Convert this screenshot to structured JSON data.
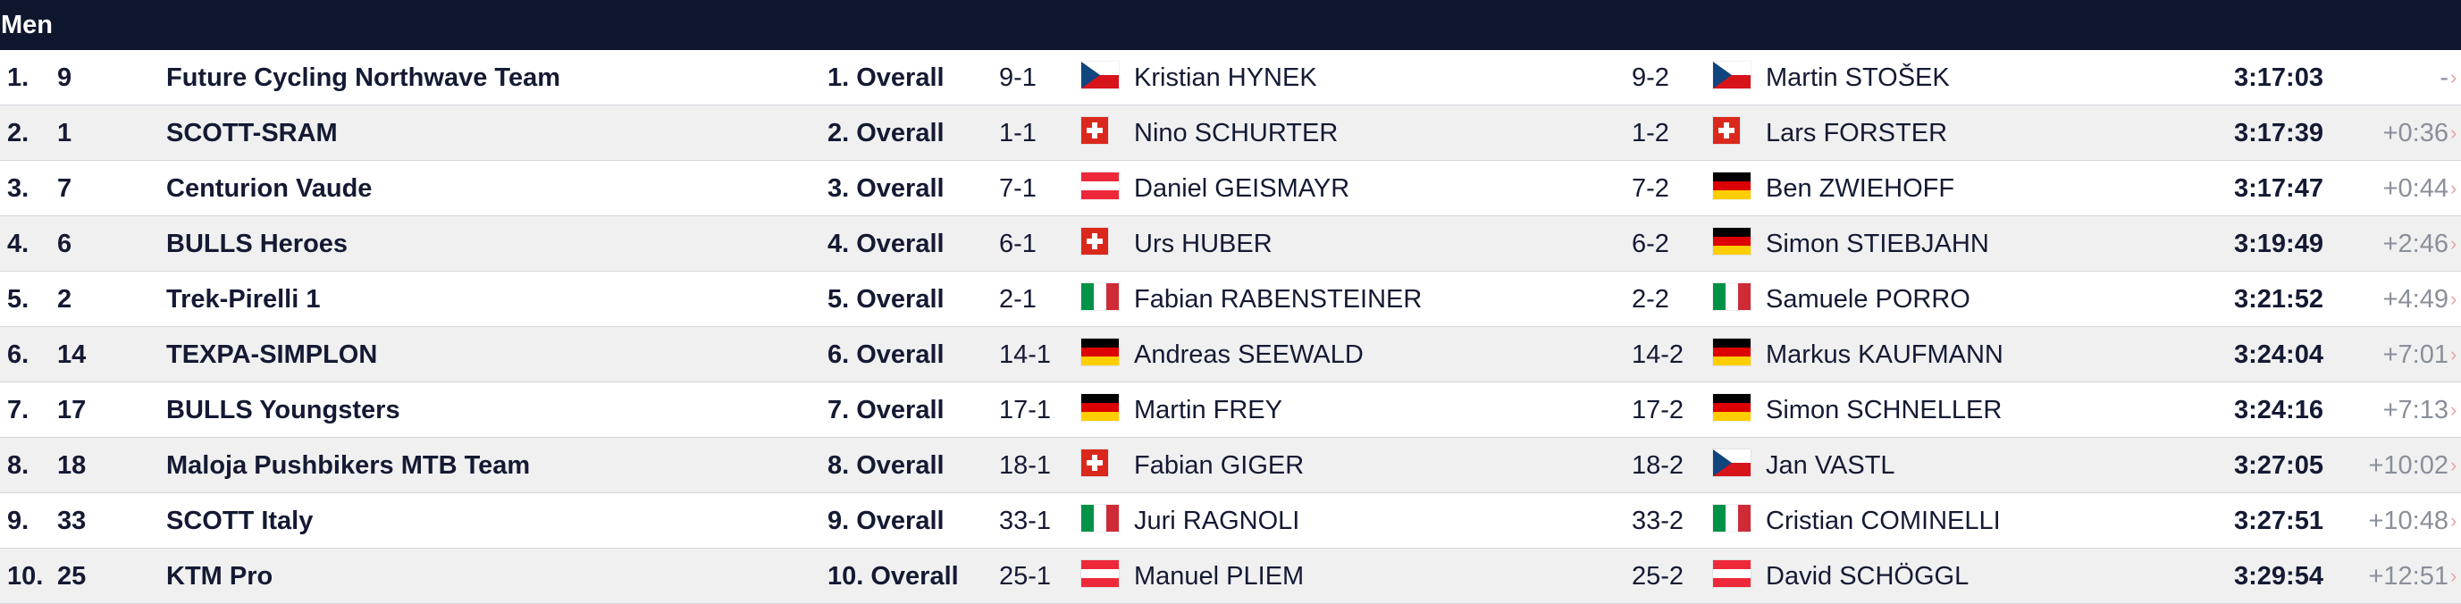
{
  "header": {
    "title": "Men"
  },
  "colors": {
    "header_bg": "#0f172e",
    "row_alt_bg": "#f0f0f1",
    "gap_text": "#8a8f99"
  },
  "rows": [
    {
      "rank": "1.",
      "num": "9",
      "team": "Future Cycling Northwave Team",
      "overall": "1. Overall",
      "r1": {
        "bib": "9-1",
        "flag": "cz-flag-icon",
        "name": "Kristian HYNEK"
      },
      "r2": {
        "bib": "9-2",
        "flag": "cz-flag-icon",
        "name": "Martin STOŠEK"
      },
      "time": "3:17:03",
      "gap": "-"
    },
    {
      "rank": "2.",
      "num": "1",
      "team": "SCOTT-SRAM",
      "overall": "2. Overall",
      "r1": {
        "bib": "1-1",
        "flag": "ch-flag-icon",
        "name": "Nino SCHURTER"
      },
      "r2": {
        "bib": "1-2",
        "flag": "ch-flag-icon",
        "name": "Lars FORSTER"
      },
      "time": "3:17:39",
      "gap": "+0:36"
    },
    {
      "rank": "3.",
      "num": "7",
      "team": "Centurion Vaude",
      "overall": "3. Overall",
      "r1": {
        "bib": "7-1",
        "flag": "at-flag-icon",
        "name": "Daniel GEISMAYR"
      },
      "r2": {
        "bib": "7-2",
        "flag": "de-flag-icon",
        "name": "Ben ZWIEHOFF"
      },
      "time": "3:17:47",
      "gap": "+0:44"
    },
    {
      "rank": "4.",
      "num": "6",
      "team": "BULLS Heroes",
      "overall": "4. Overall",
      "r1": {
        "bib": "6-1",
        "flag": "ch-flag-icon",
        "name": "Urs HUBER"
      },
      "r2": {
        "bib": "6-2",
        "flag": "de-flag-icon",
        "name": "Simon STIEBJAHN"
      },
      "time": "3:19:49",
      "gap": "+2:46"
    },
    {
      "rank": "5.",
      "num": "2",
      "team": "Trek-Pirelli 1",
      "overall": "5. Overall",
      "r1": {
        "bib": "2-1",
        "flag": "it-flag-icon",
        "name": "Fabian RABENSTEINER"
      },
      "r2": {
        "bib": "2-2",
        "flag": "it-flag-icon",
        "name": "Samuele PORRO"
      },
      "time": "3:21:52",
      "gap": "+4:49"
    },
    {
      "rank": "6.",
      "num": "14",
      "team": "TEXPA-SIMPLON",
      "overall": "6. Overall",
      "r1": {
        "bib": "14-1",
        "flag": "de-flag-icon",
        "name": "Andreas SEEWALD"
      },
      "r2": {
        "bib": "14-2",
        "flag": "de-flag-icon",
        "name": "Markus KAUFMANN"
      },
      "time": "3:24:04",
      "gap": "+7:01"
    },
    {
      "rank": "7.",
      "num": "17",
      "team": "BULLS Youngsters",
      "overall": "7. Overall",
      "r1": {
        "bib": "17-1",
        "flag": "de-flag-icon",
        "name": "Martin FREY"
      },
      "r2": {
        "bib": "17-2",
        "flag": "de-flag-icon",
        "name": "Simon SCHNELLER"
      },
      "time": "3:24:16",
      "gap": "+7:13"
    },
    {
      "rank": "8.",
      "num": "18",
      "team": "Maloja Pushbikers MTB Team",
      "overall": "8. Overall",
      "r1": {
        "bib": "18-1",
        "flag": "ch-flag-icon",
        "name": "Fabian GIGER"
      },
      "r2": {
        "bib": "18-2",
        "flag": "cz-flag-icon",
        "name": "Jan VASTL"
      },
      "time": "3:27:05",
      "gap": "+10:02"
    },
    {
      "rank": "9.",
      "num": "33",
      "team": "SCOTT Italy",
      "overall": "9. Overall",
      "r1": {
        "bib": "33-1",
        "flag": "it-flag-icon",
        "name": "Juri RAGNOLI"
      },
      "r2": {
        "bib": "33-2",
        "flag": "it-flag-icon",
        "name": "Cristian COMINELLI"
      },
      "time": "3:27:51",
      "gap": "+10:48"
    },
    {
      "rank": "10.",
      "num": "25",
      "team": "KTM Pro",
      "overall": "10. Overall",
      "r1": {
        "bib": "25-1",
        "flag": "at-flag-icon",
        "name": "Manuel PLIEM"
      },
      "r2": {
        "bib": "25-2",
        "flag": "at-flag-icon",
        "name": "David SCHÖGGL"
      },
      "time": "3:29:54",
      "gap": "+12:51"
    }
  ]
}
